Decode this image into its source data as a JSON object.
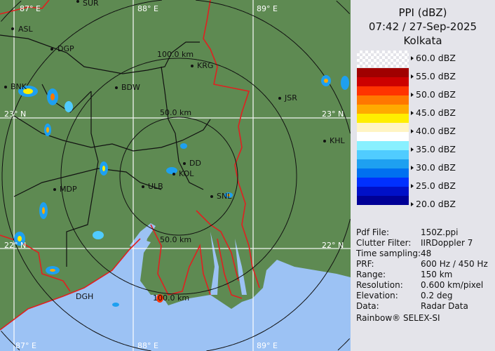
{
  "header": {
    "product": "PPI (dBZ)",
    "datetime": "07:42 / 27-Sep-2025",
    "site": "Kolkata"
  },
  "legend": {
    "labels": [
      "60.0 dBZ",
      "55.0 dBZ",
      "50.0 dBZ",
      "45.0 dBZ",
      "40.0 dBZ",
      "35.0 dBZ",
      "30.0 dBZ",
      "25.0 dBZ",
      "20.0 dBZ"
    ],
    "colors": [
      "#a00000",
      "#cc0000",
      "#ff3300",
      "#ff7700",
      "#ffaa00",
      "#ffee00",
      "#fff4c4",
      "#ffffff",
      "#88f0ff",
      "#50ccff",
      "#1ea0f0",
      "#0070f0",
      "#0030ff",
      "#0010c8",
      "#000096"
    ]
  },
  "info": [
    {
      "label": "Pdf File:",
      "value": "150Z.ppi"
    },
    {
      "label": "Clutter Filter:",
      "value": "IIRDoppler 7"
    },
    {
      "label": "Time sampling:",
      "value": "48"
    },
    {
      "label": "PRF:",
      "value": "600 Hz / 450 Hz"
    },
    {
      "label": "Range:",
      "value": "150 km"
    },
    {
      "label": "Resolution:",
      "value": "0.600 km/pixel"
    },
    {
      "label": "Elevation:",
      "value": "0.2 deg"
    },
    {
      "label": "Data:",
      "value": "Radar Data"
    }
  ],
  "footer": "Rainbow® SELEX-SI",
  "map": {
    "colors": {
      "land": "#5e8a52",
      "sea": "#9cc2f4",
      "border": "#e02020",
      "rings": "#111111",
      "grid": "#ffffff"
    },
    "grid_labels": {
      "lon_top": [
        "87° E",
        "88° E",
        "89° E"
      ],
      "lon_bottom": [
        "87° E",
        "88° E",
        "89° E"
      ],
      "lat_left": [
        "23° N",
        "22° N"
      ],
      "lat_right": [
        "23° N",
        "22° N"
      ]
    },
    "ring_labels": [
      "100.0 km",
      "50.0 km",
      "50.0 km",
      "100.0 km"
    ],
    "cities": [
      "SUR",
      "ASL",
      "DGP",
      "BNK",
      "BDW",
      "KRG",
      "JSR",
      "KHL",
      "DD",
      "KOL",
      "ULB",
      "SNL",
      "MDP",
      "DGH"
    ]
  }
}
